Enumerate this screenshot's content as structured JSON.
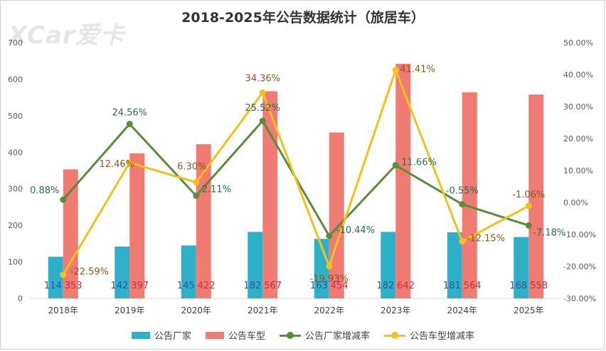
{
  "watermark": "XCar爱卡",
  "chart_data": {
    "type": "bar",
    "title": "2018-2025年公告数据统计（旅居车）",
    "categories": [
      "2018年",
      "2019年",
      "2020年",
      "2021年",
      "2022年",
      "2023年",
      "2024年",
      "2025年"
    ],
    "y_left": {
      "ticks": [
        "0",
        "100",
        "200",
        "300",
        "400",
        "500",
        "600",
        "700"
      ],
      "ylim": [
        0,
        700
      ]
    },
    "y_right": {
      "ticks": [
        "-30.00%",
        "-20.00%",
        "-10.00%",
        "0.00%",
        "10.00%",
        "20.00%",
        "30.00%",
        "40.00%",
        "50.00%"
      ],
      "ylim": [
        -30,
        50
      ]
    },
    "series": [
      {
        "name": "公告厂家",
        "kind": "bar",
        "axis": "left",
        "color": "#2eb1c8",
        "values": [
          114,
          142,
          145,
          182,
          163,
          182,
          181,
          168
        ],
        "labels": [
          "114",
          "142",
          "145",
          "182",
          "163",
          "182",
          "181",
          "168"
        ]
      },
      {
        "name": "公告车型",
        "kind": "bar",
        "axis": "left",
        "color": "#f07b72",
        "values": [
          353,
          397,
          422,
          567,
          454,
          642,
          564,
          558
        ],
        "labels": [
          "353",
          "397",
          "422",
          "567",
          "454",
          "642",
          "564",
          "558"
        ]
      },
      {
        "name": "公告厂家增减率",
        "kind": "line",
        "axis": "right",
        "color": "#5b8c3a",
        "values": [
          0.88,
          24.56,
          2.11,
          25.52,
          -10.44,
          11.66,
          -0.55,
          -7.18
        ],
        "labels": [
          "0.88%",
          "24.56%",
          "2.11%",
          "25.52%",
          "-10.44%",
          "11.66%",
          "-0.55%",
          "-7.18%"
        ]
      },
      {
        "name": "公告车型增减率",
        "kind": "line",
        "axis": "right",
        "color": "#f2c21b",
        "values": [
          -22.59,
          12.46,
          6.3,
          34.36,
          -19.93,
          41.41,
          -12.15,
          -1.06
        ],
        "labels": [
          "-22.59%",
          "12.46%",
          "6.30%",
          "34.36%",
          "-19.93%",
          "41.41%",
          "-12.15%",
          "-1.06%"
        ]
      }
    ]
  }
}
